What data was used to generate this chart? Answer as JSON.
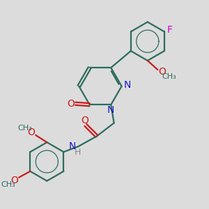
{
  "background_color": "#dcdcdc",
  "bond_color": "#2d6b5e",
  "nitrogen_color": "#1a1acc",
  "oxygen_color": "#cc1a1a",
  "fluorine_color": "#cc00cc",
  "hydrogen_color": "#888888",
  "line_width": 1.6,
  "figsize": [
    3.0,
    3.0
  ],
  "dpi": 100,
  "xlim": [
    0,
    10
  ],
  "ylim": [
    0,
    10
  ]
}
